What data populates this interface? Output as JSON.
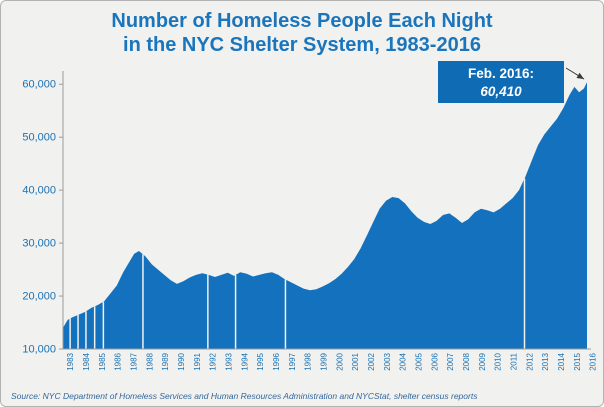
{
  "title": {
    "line1": "Number of Homeless People Each Night",
    "line2": "in the NYC Shelter System, 1983-2016"
  },
  "source_note": "Source:  NYC Department of Homeless Services and Human Resources Administration and NYCStat, shelter census reports",
  "annotation": {
    "label": "Feb. 2016:",
    "value": "60,410"
  },
  "colors": {
    "background": "#f1f1ef",
    "area": "#1371bd",
    "title": "#1a75bc",
    "axis_label": "#1a72b4",
    "axis_line": "#9a9a9a",
    "annotation_bg": "#0f6cb4",
    "annotation_text": "#ffffff",
    "source_text": "#33679b",
    "arrow": "#3a3a3a",
    "gap_line": "#f1f1ef"
  },
  "chart_data": {
    "type": "area",
    "title": "Number of Homeless People Each Night in the NYC Shelter System, 1983-2016",
    "xlabel": "",
    "ylabel": "",
    "grid": false,
    "legend": false,
    "xlim": [
      1983,
      2016.35
    ],
    "ylim": [
      10000,
      62500
    ],
    "yticks": [
      10000,
      20000,
      30000,
      40000,
      50000,
      60000
    ],
    "ytick_labels": [
      "10,000",
      "20,000",
      "30,000",
      "40,000",
      "50,000",
      "60,000"
    ],
    "xticks": [
      1983,
      1984,
      1985,
      1986,
      1987,
      1988,
      1989,
      1990,
      1991,
      1992,
      1993,
      1994,
      1995,
      1996,
      1997,
      1998,
      1999,
      2000,
      2001,
      2002,
      2003,
      2004,
      2005,
      2006,
      2007,
      2008,
      2009,
      2010,
      2011,
      2012,
      2013,
      2014,
      2015,
      2016
    ],
    "gap_lines_x": [
      1983.45,
      1983.95,
      1984.45,
      1985.0,
      1985.55,
      1988.05,
      1992.15,
      1993.9,
      1997.05,
      2012.15
    ],
    "x": [
      1983.0,
      1983.3,
      1983.6,
      1984.0,
      1984.4,
      1984.8,
      1985.2,
      1985.6,
      1986.0,
      1986.4,
      1986.8,
      1987.2,
      1987.5,
      1987.8,
      1988.2,
      1988.6,
      1989.0,
      1989.4,
      1989.8,
      1990.2,
      1990.6,
      1991.0,
      1991.4,
      1991.8,
      1992.2,
      1992.6,
      1993.0,
      1993.4,
      1993.8,
      1994.2,
      1994.6,
      1995.0,
      1995.4,
      1995.8,
      1996.2,
      1996.6,
      1997.0,
      1997.4,
      1997.8,
      1998.2,
      1998.6,
      1999.0,
      1999.4,
      1999.8,
      2000.2,
      2000.6,
      2001.0,
      2001.4,
      2001.8,
      2002.2,
      2002.6,
      2003.0,
      2003.4,
      2003.8,
      2004.2,
      2004.6,
      2005.0,
      2005.4,
      2005.8,
      2006.2,
      2006.6,
      2007.0,
      2007.4,
      2007.8,
      2008.2,
      2008.6,
      2009.0,
      2009.4,
      2009.8,
      2010.2,
      2010.6,
      2011.0,
      2011.4,
      2011.8,
      2012.2,
      2012.6,
      2013.0,
      2013.4,
      2013.8,
      2014.2,
      2014.6,
      2015.0,
      2015.3,
      2015.6,
      2015.9,
      2016.1
    ],
    "values": [
      14000,
      15500,
      16000,
      16500,
      17000,
      17800,
      18300,
      19000,
      20500,
      22000,
      24500,
      26500,
      28000,
      28500,
      27500,
      26000,
      25000,
      24000,
      23000,
      22300,
      22800,
      23500,
      24000,
      24300,
      24000,
      23600,
      24000,
      24400,
      23800,
      24500,
      24200,
      23700,
      24000,
      24300,
      24500,
      24000,
      23200,
      22600,
      22000,
      21400,
      21100,
      21300,
      21800,
      22400,
      23200,
      24200,
      25500,
      27000,
      29000,
      31500,
      34000,
      36500,
      38000,
      38700,
      38500,
      37500,
      36000,
      34800,
      34000,
      33600,
      34200,
      35300,
      35600,
      34800,
      33800,
      34500,
      35800,
      36500,
      36200,
      35800,
      36500,
      37500,
      38500,
      40000,
      42500,
      45500,
      48500,
      50500,
      52000,
      53500,
      55500,
      58000,
      59500,
      58500,
      59200,
      60410
    ],
    "final_point": {
      "x": 2016.1,
      "label": "Feb. 2016",
      "value": 60410
    }
  }
}
